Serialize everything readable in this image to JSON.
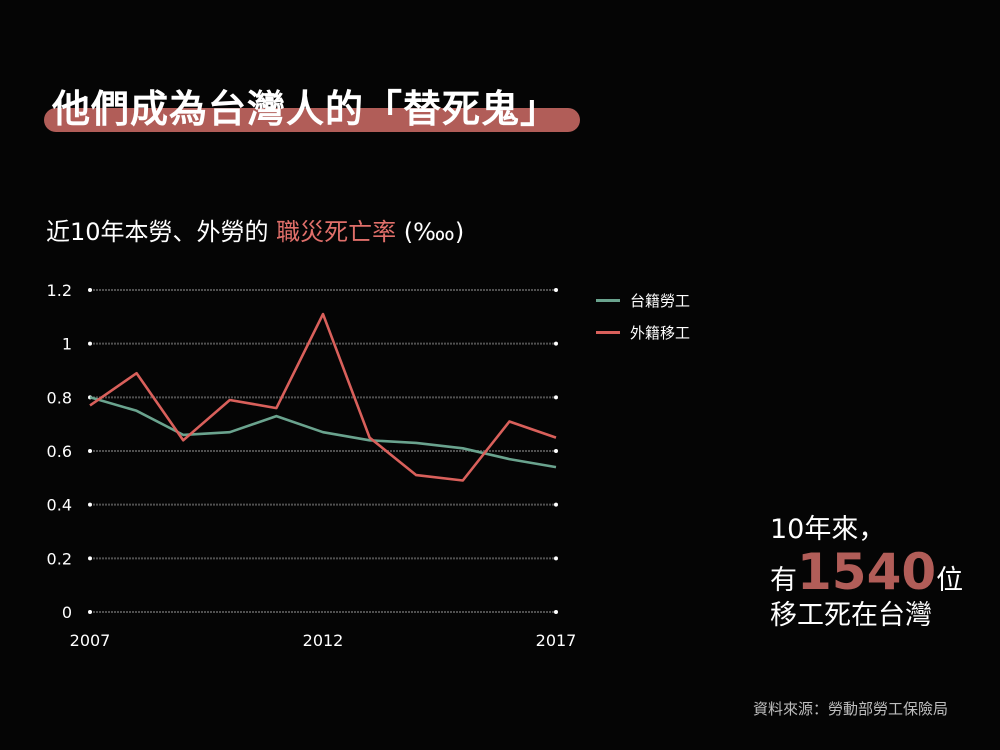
{
  "headline": "他們成為台灣人的「替死鬼」",
  "subtitle": {
    "prefix": "近10年本勞、外勞的 ",
    "highlight": "職災死亡率",
    "suffix": " (‱)"
  },
  "stat": {
    "line1": "10年來，",
    "prefix": "有",
    "number": "1540",
    "suffix": "位",
    "line3": "移工死在台灣"
  },
  "source": "資料來源：勞動部勞工保險局",
  "colors": {
    "accent": "#b15d58",
    "highlight_text": "#e06f6a",
    "local_series": "#6aa38e",
    "foreign_series": "#d9605b",
    "grid": "#6a6a6a"
  },
  "chart_data": {
    "type": "line",
    "x": [
      2007,
      2008,
      2009,
      2010,
      2011,
      2012,
      2013,
      2014,
      2015,
      2016,
      2017
    ],
    "x_tick_labels": [
      "2007",
      "2012",
      "2017"
    ],
    "y_tick_labels": [
      "0",
      "0.2",
      "0.4",
      "0.6",
      "0.8",
      "1",
      "1.2"
    ],
    "ylim": [
      0,
      1.2
    ],
    "grid": true,
    "legend_position": "right",
    "series": [
      {
        "name": "台籍勞工",
        "color": "#6aa38e",
        "values": [
          0.8,
          0.75,
          0.66,
          0.67,
          0.73,
          0.67,
          0.64,
          0.63,
          0.61,
          0.57,
          0.54
        ]
      },
      {
        "name": "外籍移工",
        "color": "#d9605b",
        "values": [
          0.77,
          0.89,
          0.64,
          0.79,
          0.76,
          1.11,
          0.65,
          0.51,
          0.49,
          0.71,
          0.65
        ]
      }
    ]
  }
}
